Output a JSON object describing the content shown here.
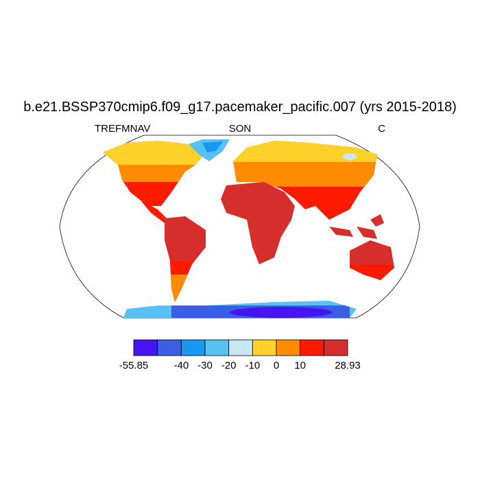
{
  "title": "b.e21.BSSP370cmip6.f09_g17.pacemaker_pacific.007 (yrs 2015-2018)",
  "left_label": "TREFMNAV",
  "center_label": "SON",
  "right_label": "C",
  "colorbar": {
    "colors": [
      "#4514f0",
      "#3b5ee6",
      "#1a97f2",
      "#56c1f2",
      "#c8e7f5",
      "#ffd12b",
      "#ff8c00",
      "#ff1a00",
      "#d62d2d"
    ],
    "levels": [
      -55.85,
      null,
      -40,
      -30,
      -20,
      -10,
      0,
      10,
      null,
      28.93
    ]
  }
}
